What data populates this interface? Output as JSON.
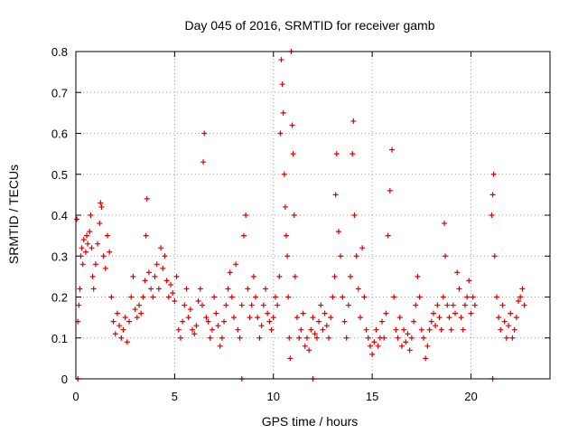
{
  "chart_data": {
    "type": "scatter",
    "title": "Day 045 of 2016, SRMTID for receiver gamb",
    "xlabel": "GPS time / hours",
    "ylabel": "SRMTID / TECUs",
    "xlim": [
      0,
      24
    ],
    "ylim": [
      0,
      0.8
    ],
    "xticks": [
      0,
      5,
      10,
      15,
      20
    ],
    "yticks": [
      0,
      0.1,
      0.2,
      0.3,
      0.4,
      0.5,
      0.6,
      0.7,
      0.8
    ],
    "xtick_labels": [
      "0",
      "5",
      "10",
      "15",
      "20"
    ],
    "ytick_labels": [
      "0",
      "0.1",
      "0.2",
      "0.3",
      "0.4",
      "0.5",
      "0.6",
      "0.7",
      "0.8"
    ],
    "grid": true,
    "marker": "+",
    "marker_color": "#e00000",
    "series": [
      {
        "name": "SRMTID",
        "points": [
          [
            0.05,
            0.39
          ],
          [
            0.1,
            0.14
          ],
          [
            0.15,
            0.18
          ],
          [
            0.2,
            0.22
          ],
          [
            0.25,
            0.3
          ],
          [
            0.3,
            0.32
          ],
          [
            0.35,
            0.28
          ],
          [
            0.4,
            0.34
          ],
          [
            0.5,
            0.31
          ],
          [
            0.55,
            0.35
          ],
          [
            0.6,
            0.33
          ],
          [
            0.7,
            0.36
          ],
          [
            0.75,
            0.4
          ],
          [
            0.8,
            0.32
          ],
          [
            0.85,
            0.25
          ],
          [
            0.9,
            0.22
          ],
          [
            1.0,
            0.28
          ],
          [
            1.1,
            0.33
          ],
          [
            1.2,
            0.38
          ],
          [
            1.25,
            0.43
          ],
          [
            1.3,
            0.42
          ],
          [
            1.4,
            0.3
          ],
          [
            1.5,
            0.27
          ],
          [
            1.6,
            0.35
          ],
          [
            1.7,
            0.31
          ],
          [
            1.8,
            0.2
          ],
          [
            1.9,
            0.14
          ],
          [
            2.0,
            0.11
          ],
          [
            2.1,
            0.16
          ],
          [
            2.2,
            0.13
          ],
          [
            2.3,
            0.1
          ],
          [
            2.4,
            0.12
          ],
          [
            2.5,
            0.15
          ],
          [
            2.6,
            0.09
          ],
          [
            2.7,
            0.14
          ],
          [
            2.8,
            0.2
          ],
          [
            2.9,
            0.25
          ],
          [
            3.0,
            0.17
          ],
          [
            3.1,
            0.15
          ],
          [
            3.2,
            0.18
          ],
          [
            3.3,
            0.16
          ],
          [
            3.4,
            0.2
          ],
          [
            3.5,
            0.24
          ],
          [
            3.55,
            0.35
          ],
          [
            3.6,
            0.44
          ],
          [
            3.7,
            0.26
          ],
          [
            3.8,
            0.22
          ],
          [
            3.9,
            0.2
          ],
          [
            4.0,
            0.25
          ],
          [
            4.1,
            0.28
          ],
          [
            4.2,
            0.22
          ],
          [
            4.3,
            0.32
          ],
          [
            4.4,
            0.27
          ],
          [
            4.5,
            0.3
          ],
          [
            4.6,
            0.24
          ],
          [
            4.7,
            0.2
          ],
          [
            4.8,
            0.23
          ],
          [
            4.9,
            0.21
          ],
          [
            5.0,
            0.19
          ],
          [
            5.1,
            0.25
          ],
          [
            5.2,
            0.12
          ],
          [
            5.3,
            0.1
          ],
          [
            5.4,
            0.14
          ],
          [
            5.5,
            0.18
          ],
          [
            5.6,
            0.22
          ],
          [
            5.7,
            0.15
          ],
          [
            5.8,
            0.17
          ],
          [
            5.9,
            0.12
          ],
          [
            6.0,
            0.11
          ],
          [
            6.1,
            0.13
          ],
          [
            6.2,
            0.19
          ],
          [
            6.3,
            0.22
          ],
          [
            6.4,
            0.18
          ],
          [
            6.45,
            0.53
          ],
          [
            6.5,
            0.6
          ],
          [
            6.6,
            0.15
          ],
          [
            6.7,
            0.14
          ],
          [
            6.8,
            0.1
          ],
          [
            6.9,
            0.12
          ],
          [
            7.0,
            0.2
          ],
          [
            7.1,
            0.16
          ],
          [
            7.2,
            0.13
          ],
          [
            7.3,
            0.08
          ],
          [
            7.4,
            0.1
          ],
          [
            7.5,
            0.14
          ],
          [
            7.6,
            0.18
          ],
          [
            7.7,
            0.22
          ],
          [
            7.8,
            0.26
          ],
          [
            7.9,
            0.2
          ],
          [
            8.0,
            0.15
          ],
          [
            8.1,
            0.28
          ],
          [
            8.2,
            0.12
          ],
          [
            8.3,
            0.1
          ],
          [
            8.4,
            0.18
          ],
          [
            8.5,
            0.35
          ],
          [
            8.6,
            0.4
          ],
          [
            8.7,
            0.22
          ],
          [
            8.8,
            0.15
          ],
          [
            8.9,
            0.18
          ],
          [
            9.0,
            0.25
          ],
          [
            9.1,
            0.2
          ],
          [
            9.2,
            0.15
          ],
          [
            9.3,
            0.1
          ],
          [
            9.4,
            0.13
          ],
          [
            9.5,
            0.18
          ],
          [
            9.6,
            0.22
          ],
          [
            9.7,
            0.16
          ],
          [
            9.8,
            0.14
          ],
          [
            9.9,
            0.12
          ],
          [
            10.0,
            0.15
          ],
          [
            10.1,
            0.2
          ],
          [
            10.2,
            0.18
          ],
          [
            10.3,
            0.25
          ],
          [
            10.35,
            0.6
          ],
          [
            10.4,
            0.78
          ],
          [
            10.45,
            0.72
          ],
          [
            10.5,
            0.65
          ],
          [
            10.55,
            0.5
          ],
          [
            10.6,
            0.42
          ],
          [
            10.65,
            0.35
          ],
          [
            10.7,
            0.3
          ],
          [
            10.75,
            0.2
          ],
          [
            10.8,
            0.1
          ],
          [
            10.85,
            0.05
          ],
          [
            10.9,
            0.8
          ],
          [
            10.95,
            0.62
          ],
          [
            11.0,
            0.55
          ],
          [
            11.05,
            0.4
          ],
          [
            11.1,
            0.25
          ],
          [
            11.2,
            0.15
          ],
          [
            11.3,
            0.1
          ],
          [
            11.4,
            0.12
          ],
          [
            11.5,
            0.16
          ],
          [
            11.6,
            0.08
          ],
          [
            11.7,
            0.1
          ],
          [
            11.8,
            0.07
          ],
          [
            11.9,
            0.12
          ],
          [
            12.0,
            0.15
          ],
          [
            12.1,
            0.11
          ],
          [
            12.2,
            0.1
          ],
          [
            12.3,
            0.14
          ],
          [
            12.4,
            0.18
          ],
          [
            12.5,
            0.12
          ],
          [
            12.6,
            0.16
          ],
          [
            12.7,
            0.13
          ],
          [
            12.8,
            0.1
          ],
          [
            12.9,
            0.15
          ],
          [
            13.0,
            0.2
          ],
          [
            13.1,
            0.25
          ],
          [
            13.15,
            0.45
          ],
          [
            13.2,
            0.55
          ],
          [
            13.3,
            0.36
          ],
          [
            13.4,
            0.3
          ],
          [
            13.5,
            0.2
          ],
          [
            13.6,
            0.14
          ],
          [
            13.7,
            0.1
          ],
          [
            13.8,
            0.18
          ],
          [
            13.9,
            0.25
          ],
          [
            14.0,
            0.55
          ],
          [
            14.05,
            0.63
          ],
          [
            14.1,
            0.4
          ],
          [
            14.2,
            0.3
          ],
          [
            14.3,
            0.22
          ],
          [
            14.4,
            0.15
          ],
          [
            14.5,
            0.32
          ],
          [
            14.6,
            0.2
          ],
          [
            14.7,
            0.12
          ],
          [
            14.8,
            0.1
          ],
          [
            14.9,
            0.08
          ],
          [
            15.0,
            0.06
          ],
          [
            15.1,
            0.09
          ],
          [
            15.2,
            0.12
          ],
          [
            15.3,
            0.08
          ],
          [
            15.4,
            0.1
          ],
          [
            15.5,
            0.14
          ],
          [
            15.6,
            0.1
          ],
          [
            15.7,
            0.16
          ],
          [
            15.8,
            0.35
          ],
          [
            15.9,
            0.46
          ],
          [
            16.0,
            0.56
          ],
          [
            16.1,
            0.2
          ],
          [
            16.2,
            0.12
          ],
          [
            16.3,
            0.1
          ],
          [
            16.4,
            0.15
          ],
          [
            16.5,
            0.08
          ],
          [
            16.6,
            0.12
          ],
          [
            16.7,
            0.09
          ],
          [
            16.8,
            0.11
          ],
          [
            16.9,
            0.07
          ],
          [
            17.0,
            0.1
          ],
          [
            17.1,
            0.14
          ],
          [
            17.2,
            0.18
          ],
          [
            17.3,
            0.25
          ],
          [
            17.4,
            0.2
          ],
          [
            17.5,
            0.12
          ],
          [
            17.6,
            0.1
          ],
          [
            17.7,
            0.05
          ],
          [
            17.8,
            0.08
          ],
          [
            17.9,
            0.12
          ],
          [
            18.0,
            0.14
          ],
          [
            18.1,
            0.16
          ],
          [
            18.2,
            0.13
          ],
          [
            18.3,
            0.18
          ],
          [
            18.4,
            0.15
          ],
          [
            18.5,
            0.12
          ],
          [
            18.6,
            0.2
          ],
          [
            18.65,
            0.38
          ],
          [
            18.7,
            0.3
          ],
          [
            18.8,
            0.18
          ],
          [
            18.9,
            0.15
          ],
          [
            19.0,
            0.12
          ],
          [
            19.1,
            0.18
          ],
          [
            19.2,
            0.16
          ],
          [
            19.3,
            0.26
          ],
          [
            19.4,
            0.22
          ],
          [
            19.5,
            0.15
          ],
          [
            19.6,
            0.12
          ],
          [
            19.7,
            0.18
          ],
          [
            19.8,
            0.2
          ],
          [
            19.9,
            0.24
          ],
          [
            20.0,
            0.16
          ],
          [
            20.1,
            0.2
          ],
          [
            20.2,
            0.18
          ],
          [
            21.05,
            0.4
          ],
          [
            21.1,
            0.45
          ],
          [
            21.15,
            0.5
          ],
          [
            21.2,
            0.3
          ],
          [
            21.3,
            0.2
          ],
          [
            21.4,
            0.15
          ],
          [
            21.5,
            0.12
          ],
          [
            21.6,
            0.18
          ],
          [
            21.7,
            0.14
          ],
          [
            21.8,
            0.1
          ],
          [
            21.9,
            0.13
          ],
          [
            22.0,
            0.16
          ],
          [
            22.1,
            0.1
          ],
          [
            22.2,
            0.12
          ],
          [
            22.3,
            0.15
          ],
          [
            22.4,
            0.19
          ],
          [
            22.5,
            0.2
          ],
          [
            22.6,
            0.22
          ],
          [
            22.7,
            0.18
          ],
          [
            0.1,
            0.0
          ],
          [
            8.4,
            0.0
          ],
          [
            12.0,
            0.0
          ],
          [
            21.1,
            0.0
          ]
        ]
      }
    ]
  }
}
